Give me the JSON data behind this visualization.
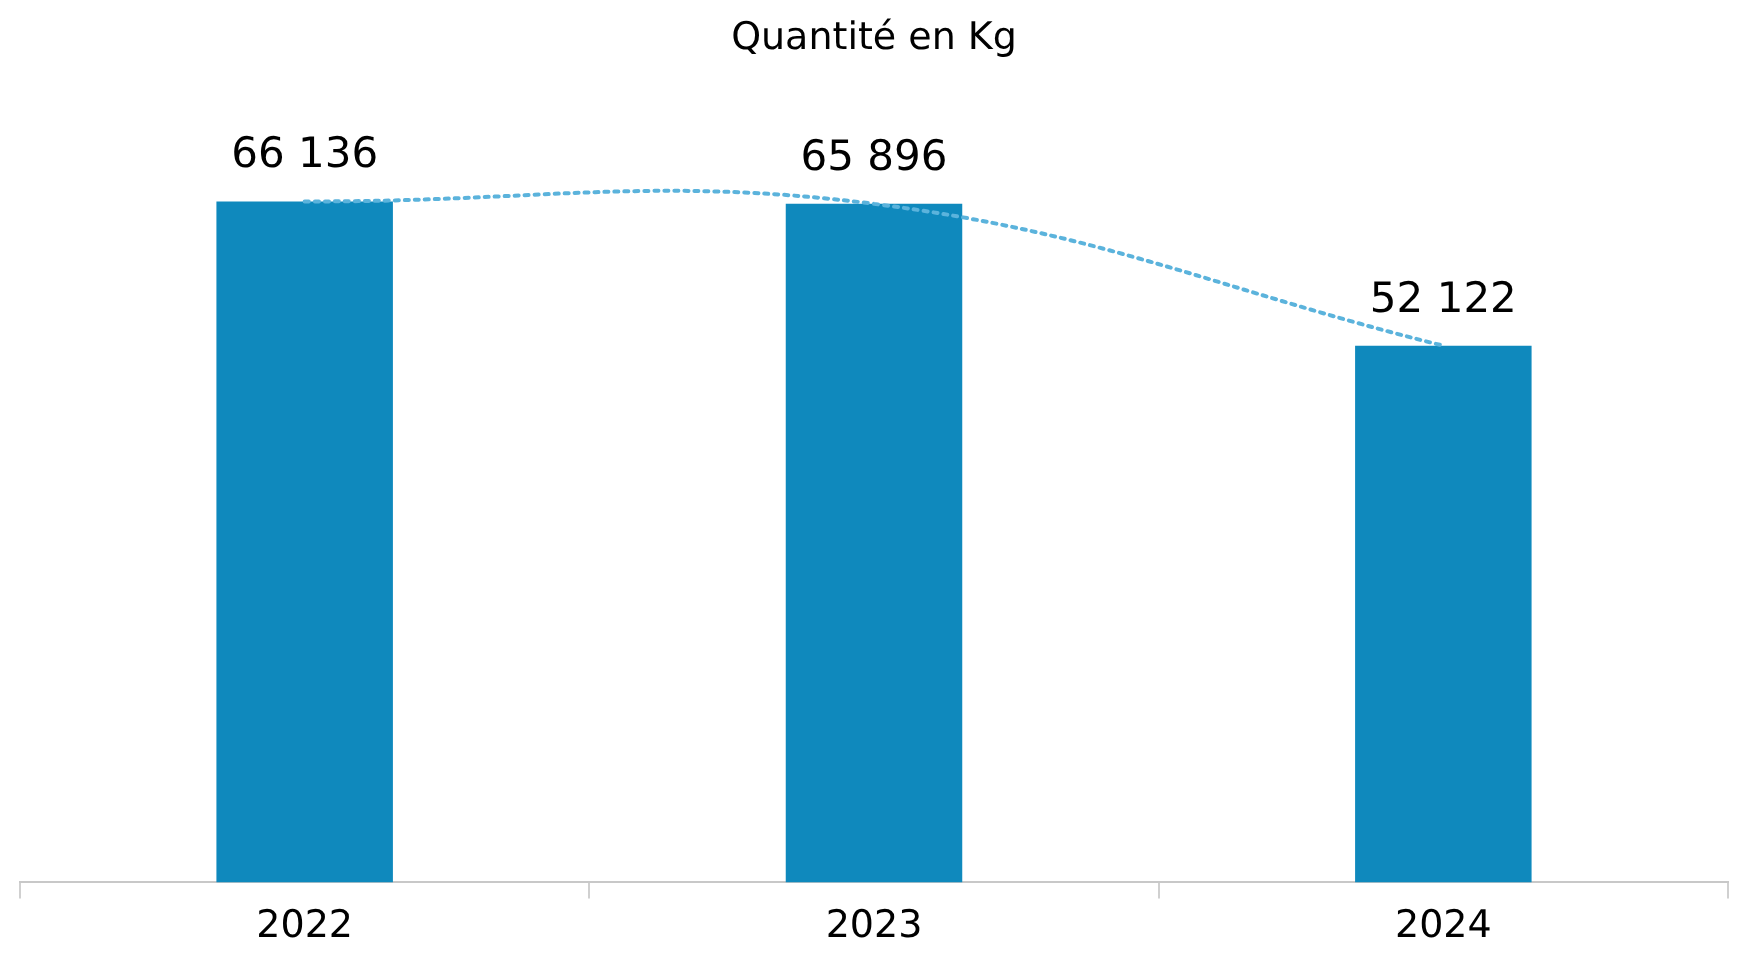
{
  "chart_data": {
    "type": "bar",
    "title": "Quantité en Kg",
    "categories": [
      "2022",
      "2023",
      "2024"
    ],
    "series": [
      {
        "color": "#0f89bd",
        "values": [
          66136,
          65896,
          52122
        ],
        "value_labels": [
          "66 136",
          "65 896",
          "52 122"
        ]
      },
      {
        "type": "line",
        "values": [
          66136,
          65896,
          52122
        ],
        "color": "#5bb3dc",
        "line_style": "dotted",
        "marker": "none"
      }
    ],
    "grid": false
  }
}
